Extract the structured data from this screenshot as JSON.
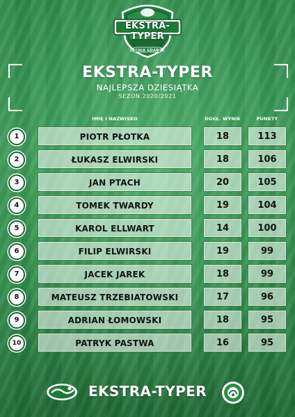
{
  "header": {
    "logo_title": "EKSTRA-TYPER",
    "logo_subtitle": "LECHIA GDAŃSK",
    "title": "EKSTRA-TYPER",
    "subtitle": "NAJLEPSZA DZIESIĄTKA",
    "season": "SEZON 2020/2021"
  },
  "columns": {
    "name": "IMIĘ I NAZWISKO",
    "exact": "DOKŁ. WYNIK",
    "points": "PUNKTY"
  },
  "rows": [
    {
      "rank": "1",
      "name": "PIOTR PŁOTKA",
      "exact": "18",
      "points": "113"
    },
    {
      "rank": "2",
      "name": "ŁUKASZ ELWIRSKI",
      "exact": "18",
      "points": "106"
    },
    {
      "rank": "3",
      "name": "JAN PTACH",
      "exact": "20",
      "points": "105"
    },
    {
      "rank": "4",
      "name": "TOMEK TWARDY",
      "exact": "19",
      "points": "104"
    },
    {
      "rank": "5",
      "name": "KAROL ELLWART",
      "exact": "14",
      "points": "100"
    },
    {
      "rank": "6",
      "name": "FILIP ELWIRSKI",
      "exact": "19",
      "points": "99"
    },
    {
      "rank": "7",
      "name": "JACEK JAREK",
      "exact": "18",
      "points": "99"
    },
    {
      "rank": "8",
      "name": "MATEUSZ TRZEBIATOWSKI",
      "exact": "17",
      "points": "96"
    },
    {
      "rank": "9",
      "name": "ADRIAN ŁOMOWSKI",
      "exact": "18",
      "points": "95"
    },
    {
      "rank": "10",
      "name": "PATRYK PASTWA",
      "exact": "16",
      "points": "95"
    }
  ],
  "footer": {
    "title": "EKSTRA-TYPER",
    "left_icon": "lechia-logo-icon",
    "right_icon": "sponsor-badge-icon"
  },
  "colors": {
    "background": "#3a9a56",
    "cell_border": "#286e3c",
    "text_dark": "#111111"
  }
}
